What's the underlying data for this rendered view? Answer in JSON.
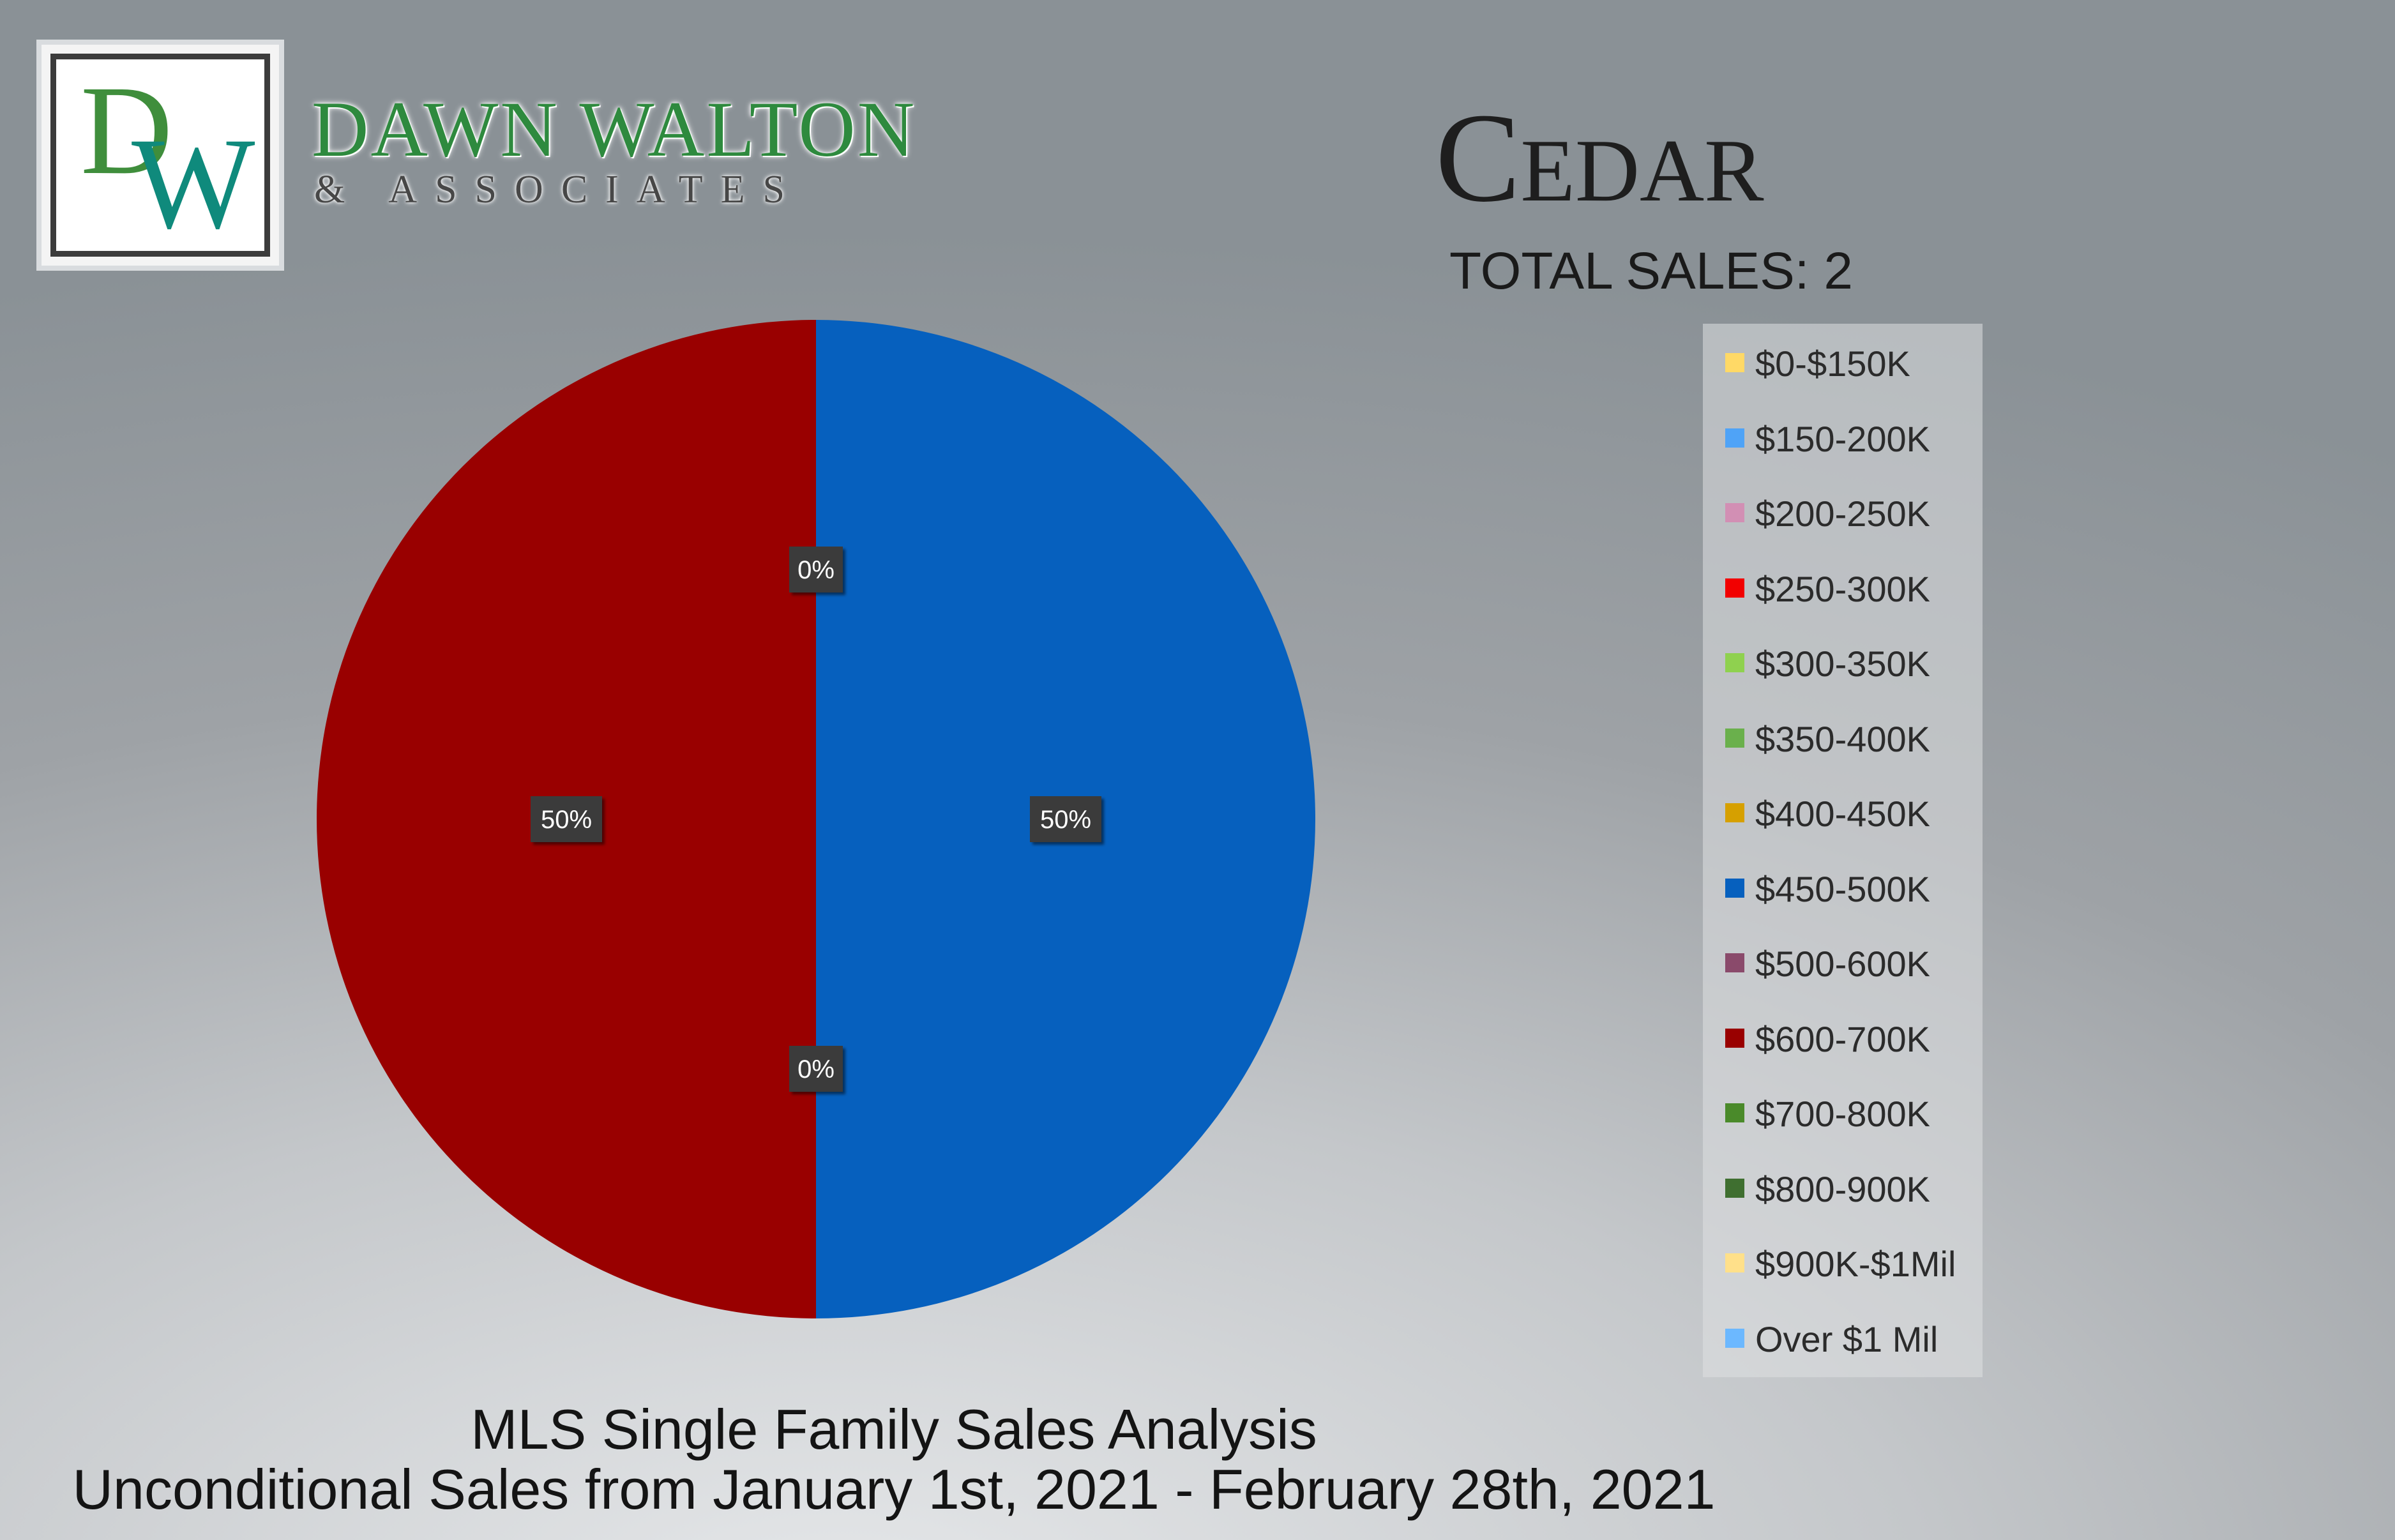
{
  "brand": {
    "logo_letter_1": "D",
    "logo_letter_2": "W",
    "name": "DAWN WALTON",
    "subtitle": "& ASSOCIATES"
  },
  "header": {
    "title": "Cedar",
    "total_sales": "TOTAL SALES: 2"
  },
  "footer": {
    "line1": "MLS Single Family Sales Analysis",
    "line2": "Unconditional Sales from January 1st, 2021 - February 28th, 2021"
  },
  "chart_data": {
    "type": "pie",
    "title": "",
    "categories": [
      "$0-$150K",
      "$150-200K",
      "$200-250K",
      "$250-300K",
      "$300-350K",
      "$350-400K",
      "$400-450K",
      "$450-500K",
      "$500-600K",
      "$600-700K",
      "$700-800K",
      "$800-900K",
      "$900K-$1Mil",
      "Over $1 Mil"
    ],
    "values": [
      0,
      0,
      0,
      0,
      0,
      0,
      0,
      1,
      0,
      1,
      0,
      0,
      0,
      0
    ],
    "colors": [
      "#ffd966",
      "#4fa3f7",
      "#d28fb4",
      "#f20000",
      "#8fd14f",
      "#6ab04c",
      "#d6a000",
      "#0660be",
      "#8a4a6b",
      "#990000",
      "#4a8a2a",
      "#3f6f30",
      "#ffe08a",
      "#6cb8ff"
    ],
    "data_labels": [
      {
        "text": "0%",
        "slice": "$0-$150K"
      },
      {
        "text": "50%",
        "slice": "$450-500K"
      },
      {
        "text": "0%",
        "slice": "$500-600K"
      },
      {
        "text": "50%",
        "slice": "$600-700K"
      }
    ],
    "legend_position": "right"
  }
}
